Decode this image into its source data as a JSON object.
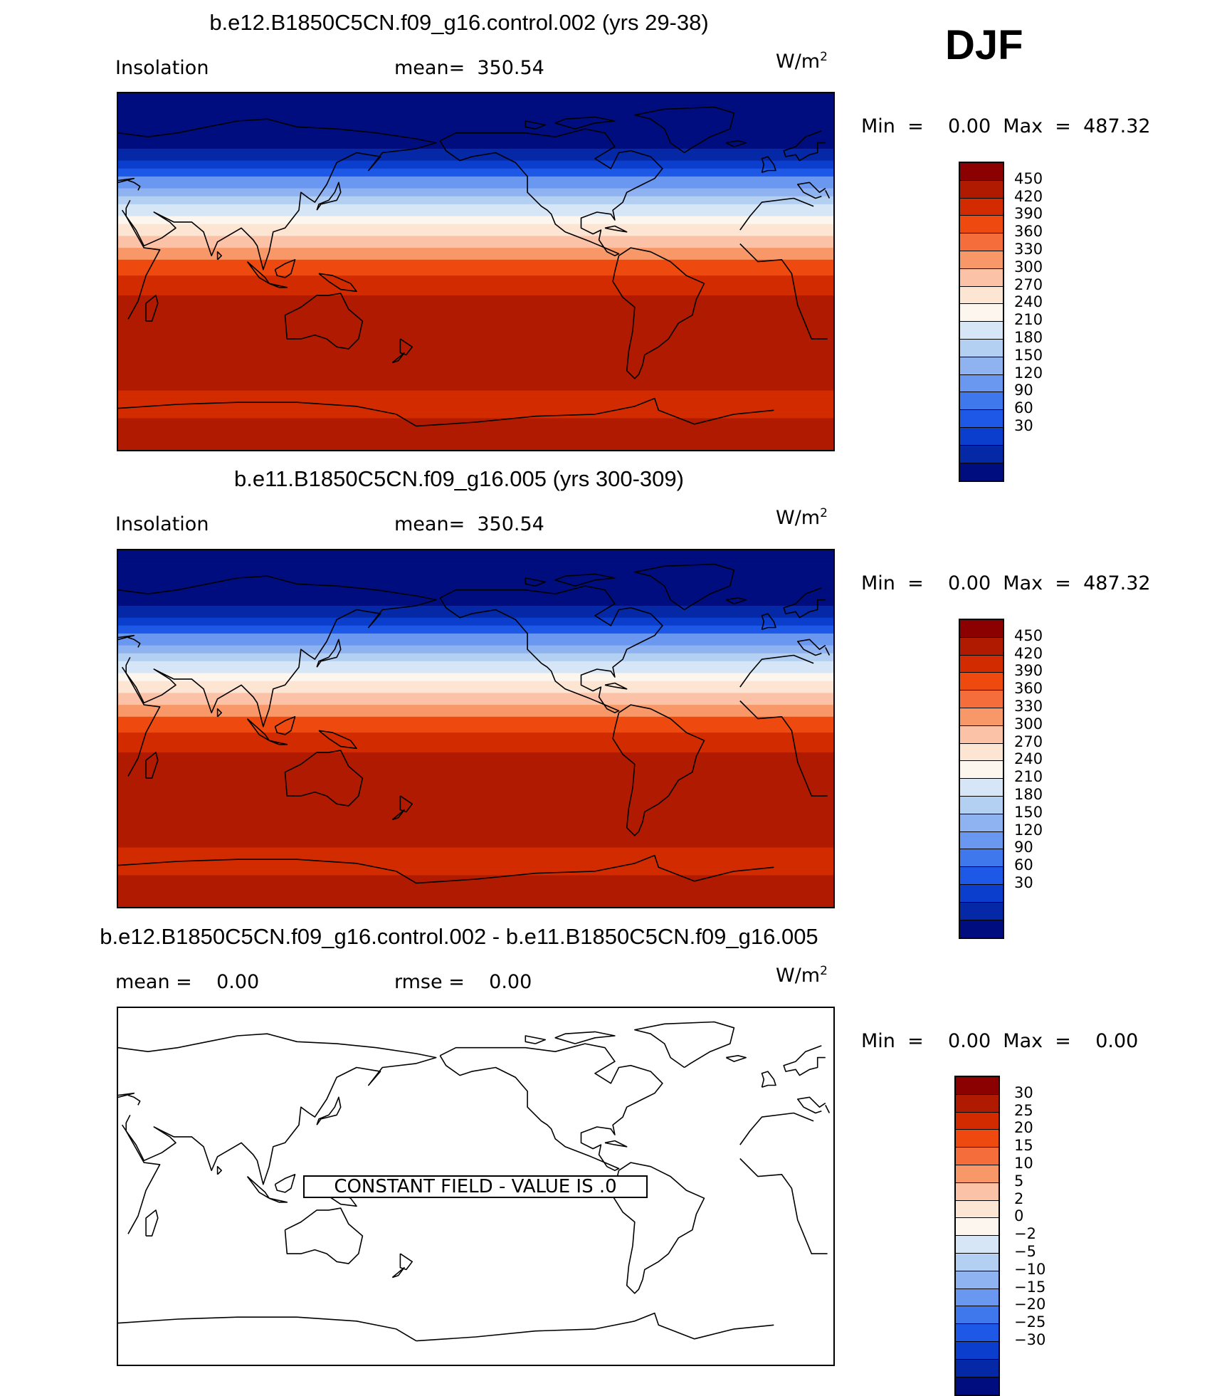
{
  "season": "DJF",
  "panels": [
    {
      "title": "b.e12.B1850C5CN.f09_g16.control.002 (yrs 29-38)",
      "left_label": "Insolation",
      "center_label": "mean=  350.54",
      "units_base": "W/m",
      "units_exp": "2",
      "minmax": "Min  =    0.00  Max  =  487.32",
      "colorbar_labels": [
        "450",
        "420",
        "390",
        "360",
        "330",
        "300",
        "270",
        "240",
        "210",
        "180",
        "150",
        "120",
        "90",
        "60",
        "30"
      ]
    },
    {
      "title": "b.e11.B1850C5CN.f09_g16.005 (yrs 300-309)",
      "left_label": "Insolation",
      "center_label": "mean=  350.54",
      "units_base": "W/m",
      "units_exp": "2",
      "minmax": "Min  =    0.00  Max  =  487.32",
      "colorbar_labels": [
        "450",
        "420",
        "390",
        "360",
        "330",
        "300",
        "270",
        "240",
        "210",
        "180",
        "150",
        "120",
        "90",
        "60",
        "30"
      ]
    },
    {
      "title": "b.e12.B1850C5CN.f09_g16.control.002 - b.e11.B1850C5CN.f09_g16.005",
      "left_label": "mean =    0.00",
      "center_label": "rmse =    0.00",
      "units_base": "W/m",
      "units_exp": "2",
      "minmax": "Min  =    0.00  Max  =    0.00",
      "colorbar_labels": [
        "30",
        "25",
        "20",
        "15",
        "10",
        "5",
        "2",
        "0",
        "−2",
        "−5",
        "−10",
        "−15",
        "−20",
        "−25",
        "−30"
      ],
      "constant_field_text": "CONSTANT FIELD - VALUE IS .0"
    }
  ],
  "colorbar_colors": [
    "#8b0000",
    "#b01a00",
    "#d22b00",
    "#ee4a10",
    "#f56d3a",
    "#f89868",
    "#fcc2a8",
    "#fde5d3",
    "#fdf6ee",
    "#d6e6f7",
    "#b3cff2",
    "#8fb2f0",
    "#6a97ef",
    "#3f77ec",
    "#1d58e6",
    "#0b3ecd",
    "#0528a6",
    "#000d7f"
  ],
  "chart_data": [
    {
      "type": "heatmap",
      "title": "b.e12.B1850C5CN.f09_g16.control.002 (yrs 29-38)",
      "variable": "Insolation",
      "units": "W/m2",
      "mean": 350.54,
      "min": 0.0,
      "max": 487.32,
      "contour_levels": [
        30,
        60,
        90,
        120,
        150,
        180,
        210,
        240,
        270,
        300,
        330,
        360,
        390,
        420,
        450
      ],
      "zonal_bands_north_to_south": [
        0,
        30,
        90,
        150,
        210,
        270,
        330,
        390,
        450,
        487,
        450
      ]
    },
    {
      "type": "heatmap",
      "title": "b.e11.B1850C5CN.f09_g16.005 (yrs 300-309)",
      "variable": "Insolation",
      "units": "W/m2",
      "mean": 350.54,
      "min": 0.0,
      "max": 487.32,
      "contour_levels": [
        30,
        60,
        90,
        120,
        150,
        180,
        210,
        240,
        270,
        300,
        330,
        360,
        390,
        420,
        450
      ],
      "zonal_bands_north_to_south": [
        0,
        30,
        90,
        150,
        210,
        270,
        330,
        390,
        450,
        487,
        450
      ]
    },
    {
      "type": "heatmap",
      "title": "b.e12.B1850C5CN.f09_g16.control.002 - b.e11.B1850C5CN.f09_g16.005",
      "units": "W/m2",
      "mean": 0.0,
      "rmse": 0.0,
      "min": 0.0,
      "max": 0.0,
      "contour_levels": [
        -30,
        -25,
        -20,
        -15,
        -10,
        -5,
        -2,
        0,
        2,
        5,
        10,
        15,
        20,
        25,
        30
      ],
      "constant_value": 0
    }
  ]
}
